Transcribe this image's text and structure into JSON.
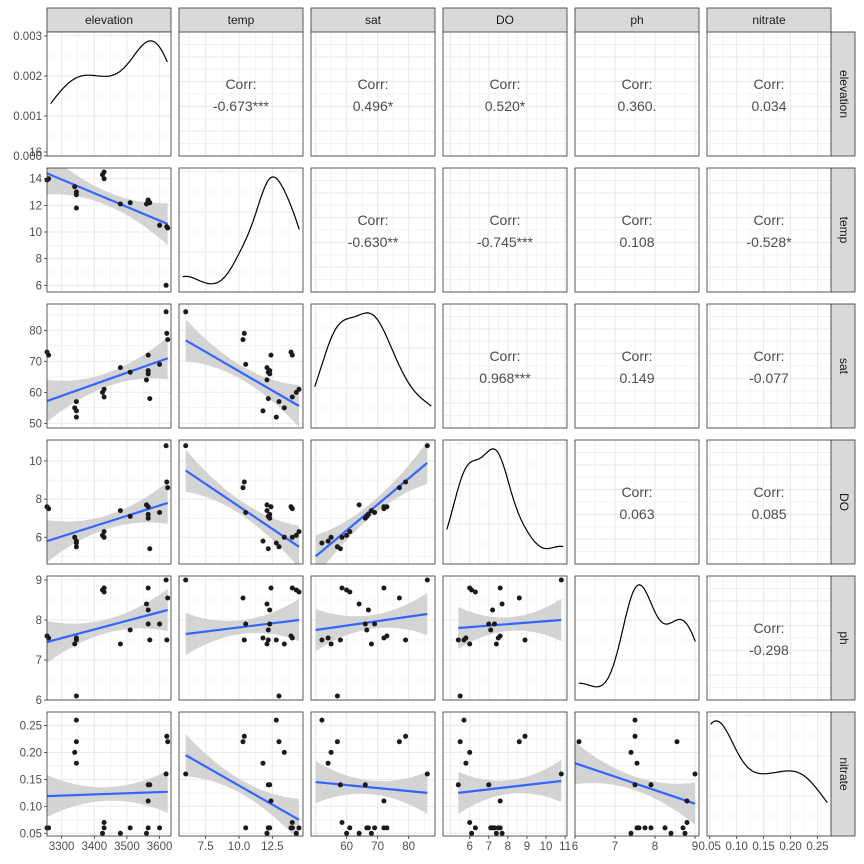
{
  "chart_data": {
    "type": "scatter",
    "kind": "pairs-plot (scatterplot matrix)",
    "variables": [
      "elevation",
      "temp",
      "sat",
      "DO",
      "ph",
      "nitrate"
    ],
    "ranges": {
      "elevation": [
        3255,
        3635
      ],
      "temp": [
        5.5,
        14.8
      ],
      "sat": [
        48.5,
        88.5
      ],
      "DO": [
        4.6,
        11.1
      ],
      "ph": [
        6.0,
        9.1
      ],
      "nitrate": [
        0.045,
        0.275
      ]
    },
    "ticks": {
      "elevation": [
        3300,
        3400,
        3500,
        3600
      ],
      "temp": [
        7.5,
        10.0,
        12.5
      ],
      "sat": [
        60,
        70,
        80
      ],
      "DO": [
        6,
        7,
        8,
        9,
        10,
        11
      ],
      "ph": [
        6,
        7,
        8,
        9
      ],
      "nitrate": [
        0.05,
        0.1,
        0.15,
        0.2,
        0.25
      ]
    },
    "tick_labels": {
      "elevation": [
        "3300",
        "3400",
        "3500",
        "3600"
      ],
      "temp": [
        "7.5",
        "10.0",
        "12.5"
      ],
      "sat": [
        "60",
        "70",
        "80"
      ],
      "DO": [
        "6",
        "7",
        "8",
        "9",
        "10",
        "11"
      ],
      "ph": [
        "6",
        "7",
        "8",
        "9"
      ],
      "nitrate": [
        "0.05",
        "0.10",
        "0.15",
        "0.20",
        "0.25"
      ]
    },
    "y_ticks": {
      "temp": [
        6,
        8,
        10,
        12,
        14,
        16
      ],
      "sat": [
        50,
        60,
        70,
        80
      ],
      "DO": [
        6,
        8,
        10
      ],
      "ph": [
        6,
        7,
        8,
        9
      ],
      "nitrate": [
        0.05,
        0.1,
        0.15,
        0.2,
        0.25
      ]
    },
    "y_tick_labels": {
      "temp": [
        "6",
        "8",
        "10",
        "12",
        "14",
        "16"
      ],
      "sat": [
        "50",
        "60",
        "70",
        "80"
      ],
      "DO": [
        "6",
        "8",
        "10"
      ],
      "ph": [
        "6",
        "7",
        "8",
        "9"
      ],
      "nitrate": [
        "0.05",
        "0.10",
        "0.15",
        "0.20",
        "0.25"
      ]
    },
    "density_y_axis": {
      "range": [
        0,
        0.0031
      ],
      "ticks": [
        0,
        0.001,
        0.002,
        0.003
      ],
      "tick_labels": [
        "0.000",
        "0.001",
        "0.002",
        "0.003"
      ]
    },
    "correlations": [
      {
        "row": "elevation",
        "col": "temp",
        "label": "Corr:",
        "value": "-0.673***"
      },
      {
        "row": "elevation",
        "col": "sat",
        "label": "Corr:",
        "value": "0.496*"
      },
      {
        "row": "elevation",
        "col": "DO",
        "label": "Corr:",
        "value": "0.520*"
      },
      {
        "row": "elevation",
        "col": "ph",
        "label": "Corr:",
        "value": "0.360."
      },
      {
        "row": "elevation",
        "col": "nitrate",
        "label": "Corr:",
        "value": "0.034"
      },
      {
        "row": "temp",
        "col": "sat",
        "label": "Corr:",
        "value": "-0.630**"
      },
      {
        "row": "temp",
        "col": "DO",
        "label": "Corr:",
        "value": "-0.745***"
      },
      {
        "row": "temp",
        "col": "ph",
        "label": "Corr:",
        "value": "0.108"
      },
      {
        "row": "temp",
        "col": "nitrate",
        "label": "Corr:",
        "value": "-0.528*"
      },
      {
        "row": "sat",
        "col": "DO",
        "label": "Corr:",
        "value": "0.968***"
      },
      {
        "row": "sat",
        "col": "ph",
        "label": "Corr:",
        "value": "0.149"
      },
      {
        "row": "sat",
        "col": "nitrate",
        "label": "Corr:",
        "value": "-0.077"
      },
      {
        "row": "DO",
        "col": "ph",
        "label": "Corr:",
        "value": "0.063"
      },
      {
        "row": "DO",
        "col": "nitrate",
        "label": "Corr:",
        "value": "0.085"
      },
      {
        "row": "ph",
        "col": "nitrate",
        "label": "Corr:",
        "value": "-0.298"
      }
    ],
    "observations": [
      {
        "elevation": 3600,
        "temp": 10.5,
        "sat": 69.0,
        "DO": 7.3,
        "ph": 7.9,
        "nitrate": 0.06
      },
      {
        "elevation": 3625,
        "temp": 10.3,
        "sat": 77.0,
        "DO": 8.6,
        "ph": 8.55,
        "nitrate": 0.22
      },
      {
        "elevation": 3622,
        "temp": 10.4,
        "sat": 79.0,
        "DO": 8.9,
        "ph": 7.5,
        "nitrate": 0.23
      },
      {
        "elevation": 3620,
        "temp": 6.0,
        "sat": 86.0,
        "DO": 10.8,
        "ph": 9.0,
        "nitrate": 0.16
      },
      {
        "elevation": 3565,
        "temp": 12.3,
        "sat": 66.0,
        "DO": 7.0,
        "ph": 7.9,
        "nitrate": 0.14
      },
      {
        "elevation": 3565,
        "temp": 12.4,
        "sat": 72.0,
        "DO": 7.6,
        "ph": 8.8,
        "nitrate": 0.11
      },
      {
        "elevation": 3570,
        "temp": 12.2,
        "sat": 58.0,
        "DO": 5.4,
        "ph": 7.5,
        "nitrate": 0.14
      },
      {
        "elevation": 3560,
        "temp": 12.1,
        "sat": 64.0,
        "DO": 7.7,
        "ph": 8.4,
        "nitrate": 0.05
      },
      {
        "elevation": 3565,
        "temp": 12.3,
        "sat": 67.0,
        "DO": 7.2,
        "ph": 8.25,
        "nitrate": 0.06
      },
      {
        "elevation": 3510,
        "temp": 12.2,
        "sat": 66.5,
        "DO": 7.1,
        "ph": 7.75,
        "nitrate": 0.06
      },
      {
        "elevation": 3480,
        "temp": 12.1,
        "sat": 68.0,
        "DO": 7.4,
        "ph": 7.4,
        "nitrate": 0.05
      },
      {
        "elevation": 3430,
        "temp": 14.0,
        "sat": 58.5,
        "DO": 6.0,
        "ph": 8.8,
        "nitrate": 0.07
      },
      {
        "elevation": 3430,
        "temp": 14.5,
        "sat": 61.0,
        "DO": 6.3,
        "ph": 8.7,
        "nitrate": 0.06
      },
      {
        "elevation": 3425,
        "temp": 14.3,
        "sat": 60.0,
        "DO": 6.1,
        "ph": 8.75,
        "nitrate": 0.05
      },
      {
        "elevation": 3345,
        "temp": 12.8,
        "sat": 52.0,
        "DO": 5.7,
        "ph": 7.5,
        "nitrate": 0.26
      },
      {
        "elevation": 3345,
        "temp": 13.0,
        "sat": 57.0,
        "DO": 5.5,
        "ph": 6.1,
        "nitrate": 0.22
      },
      {
        "elevation": 3340,
        "temp": 13.4,
        "sat": 55.0,
        "DO": 6.0,
        "ph": 7.4,
        "nitrate": 0.2
      },
      {
        "elevation": 3345,
        "temp": 11.8,
        "sat": 54.0,
        "DO": 5.8,
        "ph": 7.55,
        "nitrate": 0.18
      },
      {
        "elevation": 3260,
        "temp": 14.0,
        "sat": 72.0,
        "DO": 7.5,
        "ph": 7.55,
        "nitrate": 0.06
      },
      {
        "elevation": 3255,
        "temp": 13.9,
        "sat": 73.0,
        "DO": 7.6,
        "ph": 7.6,
        "nitrate": 0.06
      }
    ],
    "fits": [
      {
        "row": "temp",
        "col": "elevation",
        "line": [
          [
            3255,
            14.4
          ],
          [
            3625,
            10.6
          ]
        ]
      },
      {
        "row": "sat",
        "col": "elevation",
        "line": [
          [
            3255,
            57.2
          ],
          [
            3625,
            71.0
          ]
        ]
      },
      {
        "row": "DO",
        "col": "elevation",
        "line": [
          [
            3255,
            5.8
          ],
          [
            3625,
            7.8
          ]
        ]
      },
      {
        "row": "ph",
        "col": "elevation",
        "line": [
          [
            3255,
            7.45
          ],
          [
            3625,
            8.25
          ]
        ]
      },
      {
        "row": "nitrate",
        "col": "elevation",
        "line": [
          [
            3255,
            0.119
          ],
          [
            3625,
            0.127
          ]
        ]
      },
      {
        "row": "sat",
        "col": "temp",
        "line": [
          [
            6.0,
            76.8
          ],
          [
            14.5,
            55.6
          ]
        ]
      },
      {
        "row": "DO",
        "col": "temp",
        "line": [
          [
            6.0,
            9.5
          ],
          [
            14.5,
            5.5
          ]
        ]
      },
      {
        "row": "ph",
        "col": "temp",
        "line": [
          [
            6.0,
            7.65
          ],
          [
            14.5,
            8.0
          ]
        ]
      },
      {
        "row": "nitrate",
        "col": "temp",
        "line": [
          [
            6.0,
            0.195
          ],
          [
            14.5,
            0.075
          ]
        ]
      },
      {
        "row": "DO",
        "col": "sat",
        "line": [
          [
            50,
            5.0
          ],
          [
            86,
            9.9
          ]
        ]
      },
      {
        "row": "ph",
        "col": "sat",
        "line": [
          [
            50,
            7.75
          ],
          [
            86,
            8.15
          ]
        ]
      },
      {
        "row": "nitrate",
        "col": "sat",
        "line": [
          [
            50,
            0.145
          ],
          [
            86,
            0.125
          ]
        ]
      },
      {
        "row": "ph",
        "col": "DO",
        "line": [
          [
            5.4,
            7.8
          ],
          [
            10.8,
            8.0
          ]
        ]
      },
      {
        "row": "nitrate",
        "col": "DO",
        "line": [
          [
            5.4,
            0.125
          ],
          [
            10.8,
            0.147
          ]
        ]
      },
      {
        "row": "nitrate",
        "col": "ph",
        "line": [
          [
            6.0,
            0.18
          ],
          [
            9.0,
            0.105
          ]
        ]
      }
    ],
    "ci_band_color": "#cccccc",
    "fit_color": "#3366ff",
    "point_color": "#1a1a1a",
    "strip_color": "#d9d9d9",
    "grid": true
  }
}
